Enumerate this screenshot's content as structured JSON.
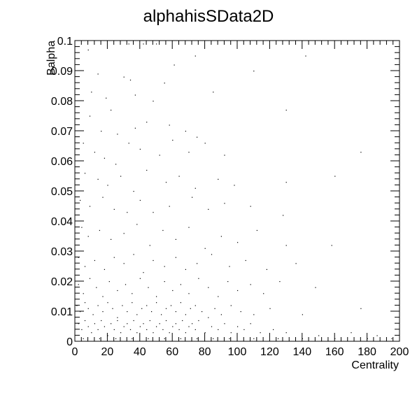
{
  "chart_data": {
    "type": "scatter",
    "title": "alphahisSData2D",
    "xlabel": "Centrality",
    "ylabel": "Balpha",
    "xlim": [
      0,
      200
    ],
    "ylim": [
      0,
      0.1
    ],
    "x_ticks": [
      "0",
      "20",
      "40",
      "60",
      "80",
      "100",
      "120",
      "140",
      "160",
      "180",
      "200"
    ],
    "y_ticks": [
      "0",
      "0.01",
      "0.02",
      "0.03",
      "0.04",
      "0.05",
      "0.06",
      "0.07",
      "0.08",
      "0.09",
      "0.1"
    ],
    "grid": false,
    "legend": "none",
    "marker_color": "#000000",
    "points": [
      [
        8,
        0.097
      ],
      [
        33,
        0.099
      ],
      [
        42,
        0.099
      ],
      [
        50,
        0.099
      ],
      [
        61,
        0.092
      ],
      [
        74,
        0.095
      ],
      [
        110,
        0.09
      ],
      [
        142,
        0.095
      ],
      [
        14,
        0.089
      ],
      [
        30,
        0.088
      ],
      [
        55,
        0.086
      ],
      [
        34,
        0.087
      ],
      [
        19,
        0.081
      ],
      [
        10,
        0.083
      ],
      [
        37,
        0.082
      ],
      [
        48,
        0.08
      ],
      [
        85,
        0.083
      ],
      [
        22,
        0.077
      ],
      [
        9,
        0.075
      ],
      [
        16,
        0.07
      ],
      [
        26,
        0.069
      ],
      [
        37,
        0.071
      ],
      [
        44,
        0.073
      ],
      [
        58,
        0.072
      ],
      [
        68,
        0.07
      ],
      [
        75,
        0.068
      ],
      [
        130,
        0.077
      ],
      [
        5,
        0.066
      ],
      [
        12,
        0.063
      ],
      [
        18,
        0.061
      ],
      [
        25,
        0.059
      ],
      [
        33,
        0.066
      ],
      [
        40,
        0.064
      ],
      [
        52,
        0.062
      ],
      [
        60,
        0.067
      ],
      [
        70,
        0.063
      ],
      [
        80,
        0.066
      ],
      [
        92,
        0.062
      ],
      [
        176,
        0.063
      ],
      [
        6,
        0.056
      ],
      [
        14,
        0.054
      ],
      [
        20,
        0.052
      ],
      [
        28,
        0.055
      ],
      [
        36,
        0.05
      ],
      [
        44,
        0.057
      ],
      [
        56,
        0.053
      ],
      [
        64,
        0.055
      ],
      [
        74,
        0.051
      ],
      [
        88,
        0.054
      ],
      [
        98,
        0.052
      ],
      [
        130,
        0.053
      ],
      [
        160,
        0.055
      ],
      [
        3,
        0.047
      ],
      [
        9,
        0.045
      ],
      [
        17,
        0.048
      ],
      [
        24,
        0.044
      ],
      [
        32,
        0.043
      ],
      [
        40,
        0.047
      ],
      [
        48,
        0.043
      ],
      [
        58,
        0.045
      ],
      [
        72,
        0.048
      ],
      [
        82,
        0.044
      ],
      [
        92,
        0.046
      ],
      [
        108,
        0.045
      ],
      [
        128,
        0.042
      ],
      [
        4,
        0.038
      ],
      [
        8,
        0.035
      ],
      [
        15,
        0.037
      ],
      [
        22,
        0.034
      ],
      [
        30,
        0.036
      ],
      [
        38,
        0.039
      ],
      [
        46,
        0.032
      ],
      [
        54,
        0.037
      ],
      [
        62,
        0.034
      ],
      [
        70,
        0.038
      ],
      [
        80,
        0.031
      ],
      [
        90,
        0.035
      ],
      [
        100,
        0.033
      ],
      [
        112,
        0.037
      ],
      [
        130,
        0.032
      ],
      [
        158,
        0.032
      ],
      [
        2,
        0.028
      ],
      [
        6,
        0.025
      ],
      [
        12,
        0.027
      ],
      [
        18,
        0.024
      ],
      [
        24,
        0.028
      ],
      [
        30,
        0.026
      ],
      [
        36,
        0.029
      ],
      [
        42,
        0.023
      ],
      [
        48,
        0.027
      ],
      [
        55,
        0.025
      ],
      [
        62,
        0.028
      ],
      [
        68,
        0.024
      ],
      [
        75,
        0.026
      ],
      [
        84,
        0.029
      ],
      [
        95,
        0.025
      ],
      [
        105,
        0.027
      ],
      [
        118,
        0.024
      ],
      [
        136,
        0.026
      ],
      [
        2,
        0.019
      ],
      [
        5,
        0.016
      ],
      [
        9,
        0.021
      ],
      [
        13,
        0.018
      ],
      [
        17,
        0.015
      ],
      [
        21,
        0.02
      ],
      [
        26,
        0.017
      ],
      [
        31,
        0.019
      ],
      [
        35,
        0.016
      ],
      [
        40,
        0.021
      ],
      [
        45,
        0.018
      ],
      [
        50,
        0.015
      ],
      [
        55,
        0.02
      ],
      [
        60,
        0.017
      ],
      [
        65,
        0.019
      ],
      [
        70,
        0.016
      ],
      [
        76,
        0.021
      ],
      [
        82,
        0.018
      ],
      [
        88,
        0.015
      ],
      [
        94,
        0.02
      ],
      [
        100,
        0.017
      ],
      [
        108,
        0.019
      ],
      [
        116,
        0.016
      ],
      [
        126,
        0.02
      ],
      [
        148,
        0.018
      ],
      [
        1,
        0.012
      ],
      [
        3,
        0.01
      ],
      [
        6,
        0.013
      ],
      [
        8,
        0.011
      ],
      [
        11,
        0.009
      ],
      [
        14,
        0.012
      ],
      [
        17,
        0.01
      ],
      [
        20,
        0.013
      ],
      [
        23,
        0.011
      ],
      [
        26,
        0.008
      ],
      [
        29,
        0.012
      ],
      [
        32,
        0.01
      ],
      [
        35,
        0.013
      ],
      [
        38,
        0.009
      ],
      [
        41,
        0.011
      ],
      [
        44,
        0.012
      ],
      [
        47,
        0.01
      ],
      [
        50,
        0.013
      ],
      [
        53,
        0.009
      ],
      [
        56,
        0.011
      ],
      [
        59,
        0.012
      ],
      [
        62,
        0.01
      ],
      [
        65,
        0.013
      ],
      [
        68,
        0.009
      ],
      [
        71,
        0.011
      ],
      [
        74,
        0.012
      ],
      [
        78,
        0.01
      ],
      [
        82,
        0.008
      ],
      [
        86,
        0.011
      ],
      [
        90,
        0.009
      ],
      [
        96,
        0.012
      ],
      [
        102,
        0.01
      ],
      [
        110,
        0.009
      ],
      [
        120,
        0.011
      ],
      [
        140,
        0.009
      ],
      [
        176,
        0.011
      ],
      [
        2,
        0.006
      ],
      [
        4,
        0.004
      ],
      [
        6,
        0.007
      ],
      [
        8,
        0.005
      ],
      [
        10,
        0.003
      ],
      [
        12,
        0.006
      ],
      [
        14,
        0.004
      ],
      [
        16,
        0.007
      ],
      [
        18,
        0.005
      ],
      [
        20,
        0.002
      ],
      [
        22,
        0.006
      ],
      [
        24,
        0.004
      ],
      [
        26,
        0.007
      ],
      [
        28,
        0.003
      ],
      [
        30,
        0.005
      ],
      [
        32,
        0.006
      ],
      [
        34,
        0.004
      ],
      [
        36,
        0.007
      ],
      [
        38,
        0.003
      ],
      [
        40,
        0.005
      ],
      [
        42,
        0.006
      ],
      [
        44,
        0.004
      ],
      [
        46,
        0.007
      ],
      [
        48,
        0.003
      ],
      [
        50,
        0.005
      ],
      [
        52,
        0.006
      ],
      [
        54,
        0.004
      ],
      [
        56,
        0.007
      ],
      [
        58,
        0.003
      ],
      [
        60,
        0.005
      ],
      [
        62,
        0.006
      ],
      [
        64,
        0.004
      ],
      [
        66,
        0.007
      ],
      [
        68,
        0.003
      ],
      [
        70,
        0.005
      ],
      [
        72,
        0.006
      ],
      [
        74,
        0.004
      ],
      [
        76,
        0.007
      ],
      [
        80,
        0.003
      ],
      [
        84,
        0.005
      ],
      [
        88,
        0.004
      ],
      [
        92,
        0.006
      ],
      [
        96,
        0.003
      ],
      [
        100,
        0.005
      ],
      [
        104,
        0.004
      ],
      [
        108,
        0.006
      ],
      [
        114,
        0.003
      ],
      [
        122,
        0.004
      ],
      [
        130,
        0.003
      ],
      [
        150,
        0.002
      ],
      [
        170,
        0.003
      ],
      [
        186,
        0.002
      ],
      [
        5,
        0.001
      ],
      [
        15,
        0.001
      ],
      [
        25,
        0.001
      ],
      [
        35,
        0.001
      ],
      [
        45,
        0.001
      ],
      [
        55,
        0.001
      ],
      [
        65,
        0.001
      ],
      [
        75,
        0.001
      ],
      [
        85,
        0.001
      ],
      [
        95,
        0.001
      ],
      [
        110,
        0.001
      ],
      [
        125,
        0.001
      ],
      [
        140,
        0.001
      ],
      [
        160,
        0.001
      ],
      [
        180,
        0.001
      ],
      [
        195,
        0.001
      ]
    ]
  }
}
